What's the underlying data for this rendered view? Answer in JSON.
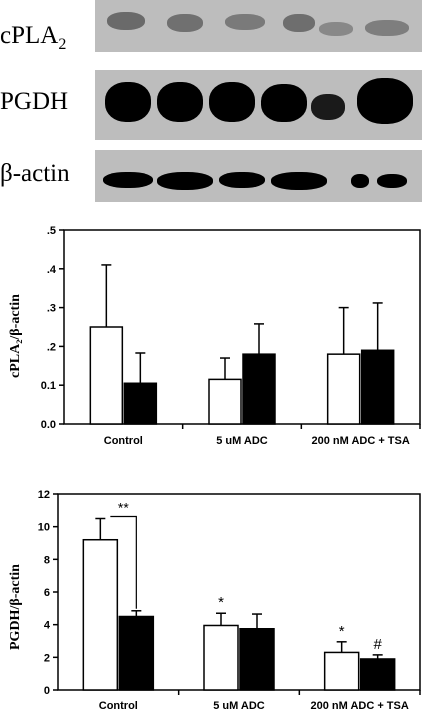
{
  "blots": {
    "labels": [
      "cPLA",
      "PGDH",
      "β-actin"
    ],
    "cpla_subscript": "2"
  },
  "colors": {
    "bar_open": "#ffffff",
    "bar_filled": "#000000",
    "blot_background": "#bdbdbd"
  },
  "chart_data": [
    {
      "type": "bar",
      "ylabel": "cPLA₂/β-actin",
      "categories": [
        "Control",
        "5 uM ADC",
        "200 nM ADC + TSA"
      ],
      "ylim": [
        0,
        0.5
      ],
      "yticks": [
        0.0,
        0.1,
        0.2,
        0.3,
        0.4,
        0.5
      ],
      "ytick_labels": [
        "0.0",
        "0.1",
        ".2",
        ".3",
        ".4",
        ".5"
      ],
      "series": [
        {
          "values": [
            0.25,
            0.115,
            0.18
          ],
          "errors": [
            0.16,
            0.055,
            0.12
          ],
          "color": "#ffffff"
        },
        {
          "values": [
            0.105,
            0.18,
            0.19
          ],
          "errors": [
            0.078,
            0.078,
            0.122
          ],
          "color": "#000000"
        }
      ],
      "annotations": []
    },
    {
      "type": "bar",
      "ylabel": "PGDH/β-actin",
      "categories": [
        "Control",
        "5 uM ADC",
        "200 nM ADC + TSA"
      ],
      "ylim": [
        0,
        12
      ],
      "yticks": [
        0,
        2,
        4,
        6,
        8,
        10,
        12
      ],
      "ytick_labels": [
        "0",
        "2",
        "4",
        "6",
        "8",
        "10",
        "12"
      ],
      "series": [
        {
          "values": [
            9.2,
            3.95,
            2.3
          ],
          "errors": [
            1.3,
            0.75,
            0.65
          ],
          "color": "#ffffff"
        },
        {
          "values": [
            4.5,
            3.75,
            1.9
          ],
          "errors": [
            0.35,
            0.9,
            0.25
          ],
          "color": "#000000"
        }
      ],
      "annotations": [
        {
          "text": "**",
          "group": 0,
          "bracket": true
        },
        {
          "text": "*",
          "group": 1,
          "series": 0
        },
        {
          "text": "*",
          "group": 2,
          "series": 0
        },
        {
          "text": "#",
          "group": 2,
          "series": 1
        }
      ]
    }
  ]
}
